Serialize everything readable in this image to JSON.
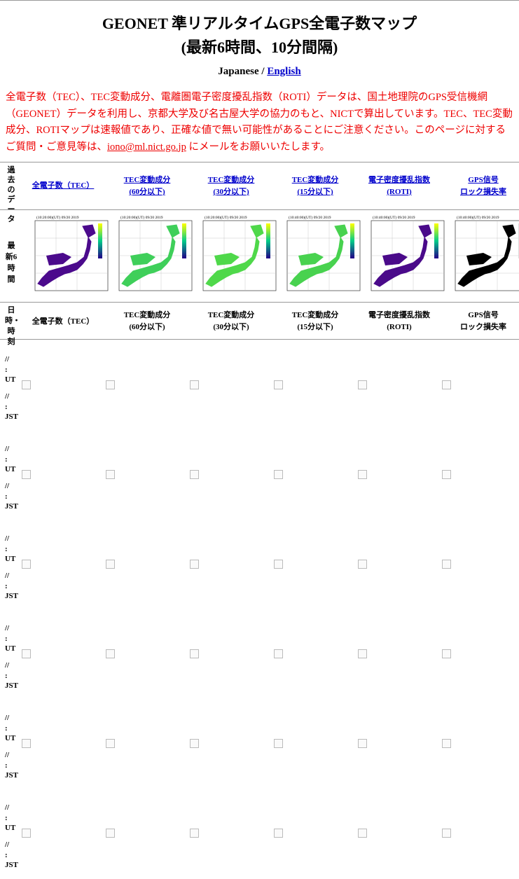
{
  "header": {
    "title_line1": "GEONET 準リアルタイムGPS全電子数マップ",
    "title_line2": "(最新6時間、10分間隔)"
  },
  "language": {
    "current": "Japanese /",
    "link": "English"
  },
  "intro": {
    "text_before": "全電子数（TEC）、TEC変動成分、電離圏電子密度擾乱指数（ROTI）データは、国土地理院のGPS受信機網（GEONET）データを利用し、京都大学及び名古屋大学の協力のもと、NICTで算出しています。TEC、TEC変動成分、ROTIマップは速報値であり、正確な値で無い可能性があることにご注意ください。このページに対するご質問・ご意見等は、",
    "email": "iono@ml.nict.go.jp",
    "text_after": " にメールをお願いいたします。"
  },
  "table": {
    "corner_past": "過去のデータ",
    "links": [
      [
        "全電子数（TEC）"
      ],
      [
        "TEC変動成分",
        "(60分以下)"
      ],
      [
        "TEC変動成分",
        "(30分以下)"
      ],
      [
        "TEC変動成分",
        "(15分以下)"
      ],
      [
        "電子密度擾乱指数",
        "(ROTI)"
      ],
      [
        "GPS信号",
        "ロック損失率"
      ]
    ],
    "latest_label": "最新6時間",
    "map_titles": [
      "(10:20:00)(UT) 09/20 2019",
      "(10:20:00)(UT) 09/20 2019",
      "(10:20:00)(UT) 09/20 2019",
      "(10:40:00)(UT) 09/20 2019",
      "(10:40:00)(UT) 09/20 2019",
      "(10:40:00)(UT) 09/20 2019"
    ],
    "map_colors": [
      "#4b0a8c",
      "#3fcf5a",
      "#4fd84a",
      "#48d24f",
      "#4a0a8a",
      "#000000"
    ],
    "corner_time": "日時・時刻",
    "columns": [
      [
        "全電子数（TEC）"
      ],
      [
        "TEC変動成分",
        "(60分以下)"
      ],
      [
        "TEC変動成分",
        "(30分以下)"
      ],
      [
        "TEC変動成分",
        "(15分以下)"
      ],
      [
        "電子密度擾乱指数",
        "(ROTI)"
      ],
      [
        "GPS信号",
        "ロック損失率"
      ]
    ],
    "rows": [
      [
        "//",
        ":",
        "UT",
        "//",
        ":",
        "JST"
      ],
      [
        "//",
        ":",
        "UT",
        "//",
        ":",
        "JST"
      ],
      [
        "//",
        ":",
        "UT",
        "//",
        ":",
        "JST"
      ],
      [
        "//",
        ":",
        "UT",
        "//",
        ":",
        "JST"
      ],
      [
        "//",
        ":",
        "UT",
        "//",
        ":",
        "JST"
      ],
      [
        "//",
        ":",
        "UT",
        "//",
        ":",
        "JST"
      ]
    ]
  }
}
